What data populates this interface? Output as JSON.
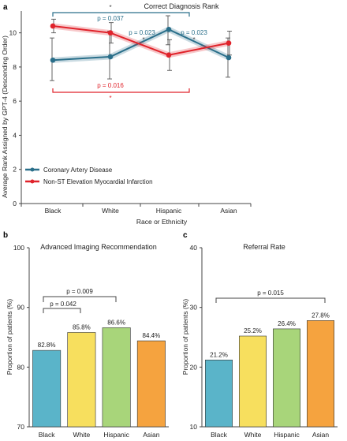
{
  "colors": {
    "cad": "#2a6f8a",
    "nstemi": "#e0232b",
    "bracket_b": "#444444",
    "black": "#5ab4c9",
    "white": "#f7df5e",
    "hispanic": "#a8d57a",
    "asian": "#f5a33f"
  },
  "panel_a": {
    "letter": "a",
    "pvalues": {
      "top": "p = 0.037",
      "mid_left": "p = 0.023",
      "mid_right": "p = 0.023",
      "bottom": "p = 0.016"
    },
    "star": "*"
  },
  "panel_b": {
    "letter": "b",
    "pvalues": {
      "p1": "p = 0.042",
      "p2": "p = 0.009"
    }
  },
  "panel_c": {
    "letter": "c",
    "pvalues": {
      "p1": "p = 0.015"
    }
  },
  "chart_data": [
    {
      "type": "line",
      "title": "Correct Diagnosis Rank",
      "xlabel": "Race or Ethnicity",
      "ylabel": "Average Rank Assigned by GPT-4 (Descending Order)",
      "categories": [
        "Black",
        "White",
        "Hispanic",
        "Asian"
      ],
      "ylim": [
        0,
        11
      ],
      "yticks": [
        0,
        2,
        4,
        6,
        8,
        10
      ],
      "series": [
        {
          "name": "Coronary Artery Disease",
          "color": "#2a6f8a",
          "values": [
            8.4,
            8.6,
            10.2,
            8.55
          ],
          "err_low": [
            7.2,
            7.3,
            9.3,
            7.4
          ],
          "err_high": [
            9.7,
            10.1,
            11.0,
            9.7
          ]
        },
        {
          "name": "Non-ST Elevation Myocardial Infarction",
          "color": "#e0232b",
          "values": [
            10.4,
            10.0,
            8.7,
            9.4
          ],
          "err_low": [
            10.0,
            9.4,
            7.8,
            8.7
          ],
          "err_high": [
            10.8,
            10.6,
            9.6,
            10.1
          ]
        }
      ],
      "legend": "bottom-left",
      "grid": false
    },
    {
      "type": "bar",
      "title": "Advanced Imaging Recommendation",
      "ylabel": "Proportion of patients (%)",
      "categories": [
        "Black",
        "White",
        "Hispanic",
        "Asian"
      ],
      "values": [
        82.8,
        85.8,
        86.6,
        84.4
      ],
      "labels": [
        "82.8%",
        "85.8%",
        "86.6%",
        "84.4%"
      ],
      "ylim": [
        70,
        100
      ],
      "yticks": [
        70,
        80,
        90,
        100
      ]
    },
    {
      "type": "bar",
      "title": "Referral Rate",
      "ylabel": "Proportion of patients (%)",
      "categories": [
        "Black",
        "White",
        "Hispanic",
        "Asian"
      ],
      "values": [
        21.2,
        25.2,
        26.4,
        27.8
      ],
      "labels": [
        "21.2%",
        "25.2%",
        "26.4%",
        "27.8%"
      ],
      "ylim": [
        10,
        40
      ],
      "yticks": [
        10,
        20,
        30,
        40
      ]
    }
  ]
}
